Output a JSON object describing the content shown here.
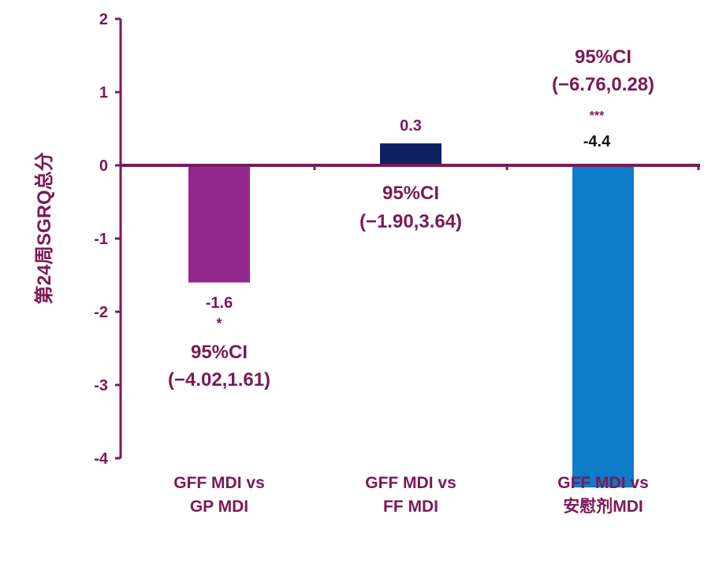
{
  "chart_data": {
    "type": "bar",
    "ylabel": "第24周SGRQ总分",
    "ylim": [
      -4,
      2
    ],
    "yticks": [
      "2",
      "1",
      "0",
      "-1",
      "-2",
      "-3",
      "-4"
    ],
    "grid": false,
    "legend": "none",
    "categories": [
      [
        "GFF MDI vs",
        "GP MDI"
      ],
      [
        "GFF MDI vs",
        "FF MDI"
      ],
      [
        "GFF MDI vs",
        "安慰剂MDI"
      ]
    ],
    "values": [
      -1.6,
      0.3,
      -4.4
    ],
    "value_labels": [
      "-1.6",
      "0.3",
      "-4.4"
    ],
    "significance": [
      "*",
      "",
      "***"
    ],
    "ci_titles": [
      "95%CI",
      "95%CI",
      "95%CI"
    ],
    "ci_ranges": [
      "(−4.02,1.61)",
      "(−1.90,3.64)",
      "(−6.76,0.28)"
    ],
    "colors": [
      "#92278f",
      "#0d2063",
      "#0c7cc9"
    ],
    "axis_color": "#7b1a55",
    "text_color": "#7b1a55",
    "label_colors": [
      "#7b1a55",
      "#7b1a55",
      "#111111"
    ]
  }
}
